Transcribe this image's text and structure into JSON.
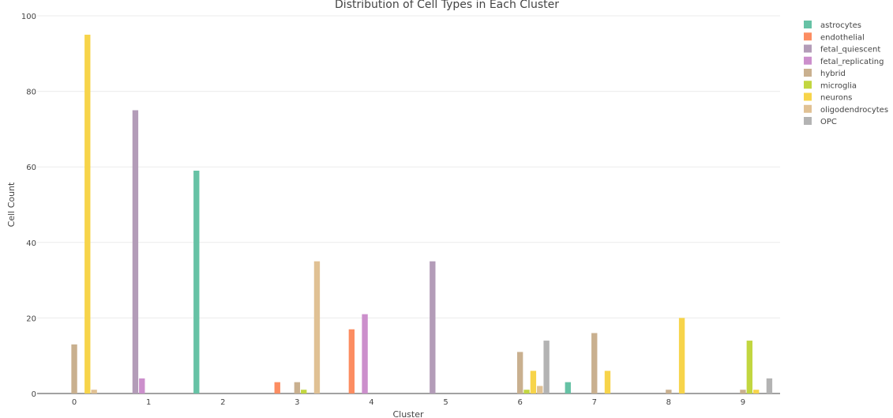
{
  "chart_data": {
    "type": "bar",
    "title": "Distribution of Cell Types in Each Cluster",
    "xlabel": "Cluster",
    "ylabel": "Cell Count",
    "ylim": [
      0,
      100
    ],
    "yticks": [
      "0",
      "20",
      "40",
      "60",
      "80",
      "100"
    ],
    "categories": [
      "0",
      "1",
      "2",
      "3",
      "4",
      "5",
      "6",
      "7",
      "8",
      "9"
    ],
    "grid": true,
    "legend_position": "top-right",
    "series": [
      {
        "name": "astrocytes",
        "color": "#66c2a5",
        "values": [
          0,
          0,
          59,
          0,
          0,
          0,
          0,
          3,
          0,
          0
        ]
      },
      {
        "name": "endothelial",
        "color": "#fc8d62",
        "values": [
          0,
          0,
          0,
          3,
          17,
          0,
          0,
          0,
          0,
          0
        ]
      },
      {
        "name": "fetal_quiescent",
        "color": "#b39cb8",
        "values": [
          0,
          75,
          0,
          0,
          0,
          35,
          0,
          0,
          0,
          0
        ]
      },
      {
        "name": "fetal_replicating",
        "color": "#cc8fcc",
        "values": [
          0,
          4,
          0,
          0,
          21,
          0,
          0,
          0,
          0,
          0
        ]
      },
      {
        "name": "hybrid",
        "color": "#c9b08f",
        "values": [
          13,
          0,
          0,
          3,
          0,
          0,
          11,
          16,
          1,
          1
        ]
      },
      {
        "name": "microglia",
        "color": "#c2d640",
        "values": [
          0,
          0,
          0,
          1,
          0,
          0,
          1,
          0,
          0,
          14
        ]
      },
      {
        "name": "neurons",
        "color": "#f7d44a",
        "values": [
          95,
          0,
          0,
          0,
          0,
          0,
          6,
          6,
          20,
          1
        ]
      },
      {
        "name": "oligodendrocytes",
        "color": "#e0c194",
        "values": [
          1,
          0,
          0,
          35,
          0,
          0,
          2,
          0,
          0,
          0
        ]
      },
      {
        "name": "OPC",
        "color": "#b3b3b3",
        "values": [
          0,
          0,
          0,
          0,
          0,
          0,
          14,
          0,
          0,
          4
        ]
      }
    ]
  }
}
